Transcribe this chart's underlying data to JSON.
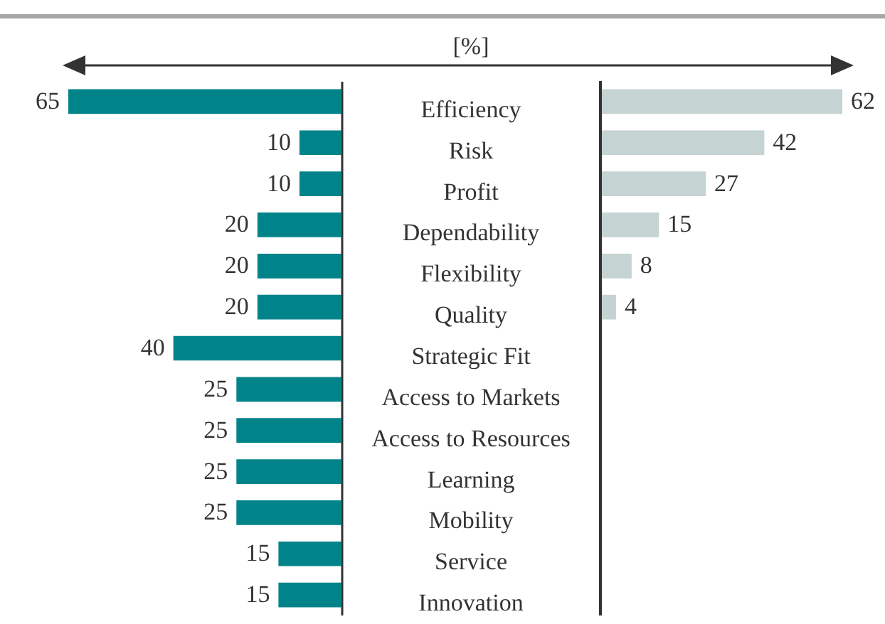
{
  "chart_data": [
    {
      "type": "bar",
      "orientation": "horizontal",
      "xlabel": "[%]",
      "data_labels": true,
      "color": "#00848a",
      "categories": [
        "Efficiency",
        "Risk",
        "Profit",
        "Dependability",
        "Flexibility",
        "Quality",
        "Strategic Fit",
        "Access to Markets",
        "Access to Resources",
        "Learning",
        "Mobility",
        "Service",
        "Innovation"
      ],
      "values": [
        65,
        10,
        10,
        20,
        20,
        20,
        40,
        25,
        25,
        25,
        25,
        15,
        15
      ]
    },
    {
      "type": "bar",
      "orientation": "horizontal",
      "data_labels": true,
      "color": "#c5d3d2",
      "categories": [
        null,
        null,
        null,
        null,
        null,
        null
      ],
      "values": [
        62,
        42,
        27,
        15,
        8,
        4
      ]
    }
  ]
}
